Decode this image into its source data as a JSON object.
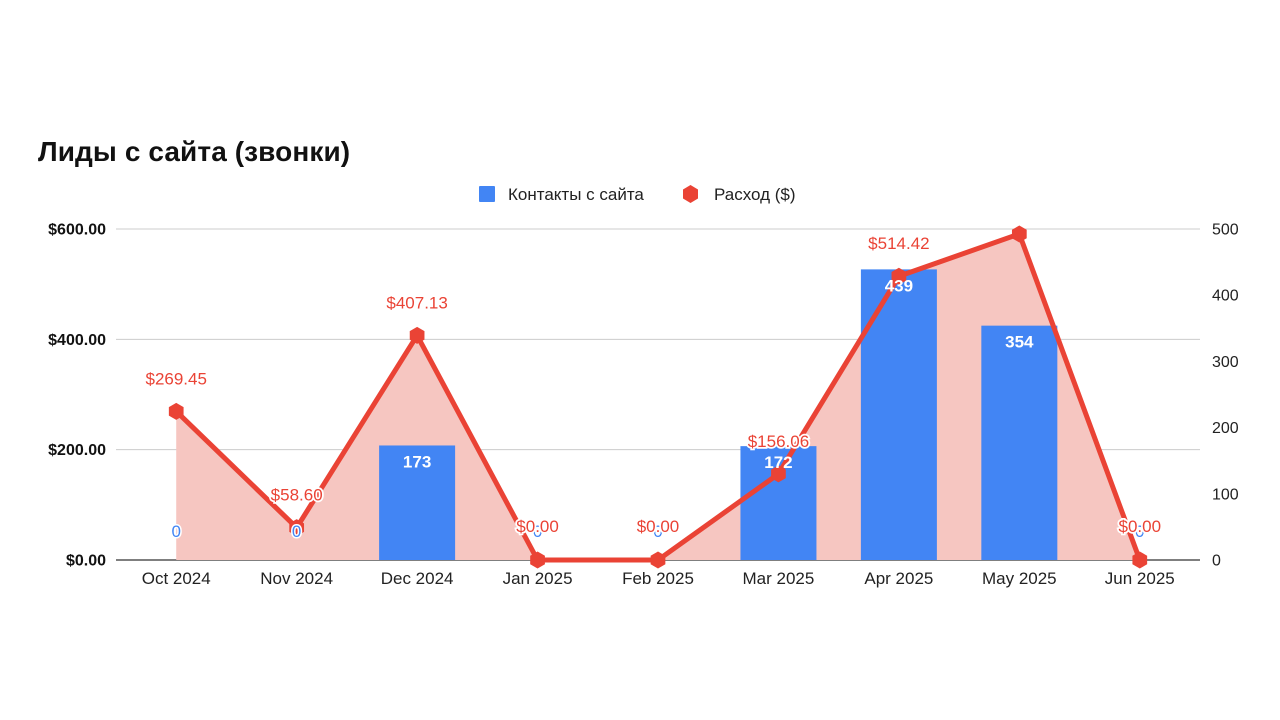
{
  "chart_data": {
    "type": "bar",
    "title": "Лиды с сайта (звонки)",
    "categories": [
      "Oct 2024",
      "Nov 2024",
      "Dec 2024",
      "Jan 2025",
      "Feb 2025",
      "Mar 2025",
      "Apr 2025",
      "May 2025",
      "Jun 2025"
    ],
    "legend_position": "top",
    "grid": true,
    "left_axis": {
      "ticks": [
        "$0.00",
        "$200.00",
        "$400.00",
        "$600.00"
      ],
      "ylim": [
        0,
        600
      ]
    },
    "right_axis": {
      "ticks": [
        "0",
        "100",
        "200",
        "300",
        "400",
        "500"
      ],
      "ylim": [
        0,
        500
      ]
    },
    "series": [
      {
        "name": "Контакты с сайта",
        "type": "bar",
        "axis": "right",
        "color": "#4285f4",
        "values": [
          0,
          0,
          173,
          0,
          0,
          172,
          439,
          354,
          0
        ],
        "labels": [
          "0",
          "0",
          "173",
          "0",
          "0",
          "172",
          "439",
          "354",
          "0"
        ]
      },
      {
        "name": "Расход ($)",
        "type": "area-line",
        "axis": "left",
        "color": "#ea4335",
        "area_color": "#f6c6c1",
        "values": [
          269.45,
          58.6,
          407.13,
          0,
          0,
          156.06,
          514.42,
          591,
          0
        ],
        "labels": [
          "$269.45",
          "$58.60",
          "$407.13",
          "$0.00",
          "$0.00",
          "$156.06",
          "$514.42",
          "",
          "$0.00"
        ]
      }
    ]
  }
}
